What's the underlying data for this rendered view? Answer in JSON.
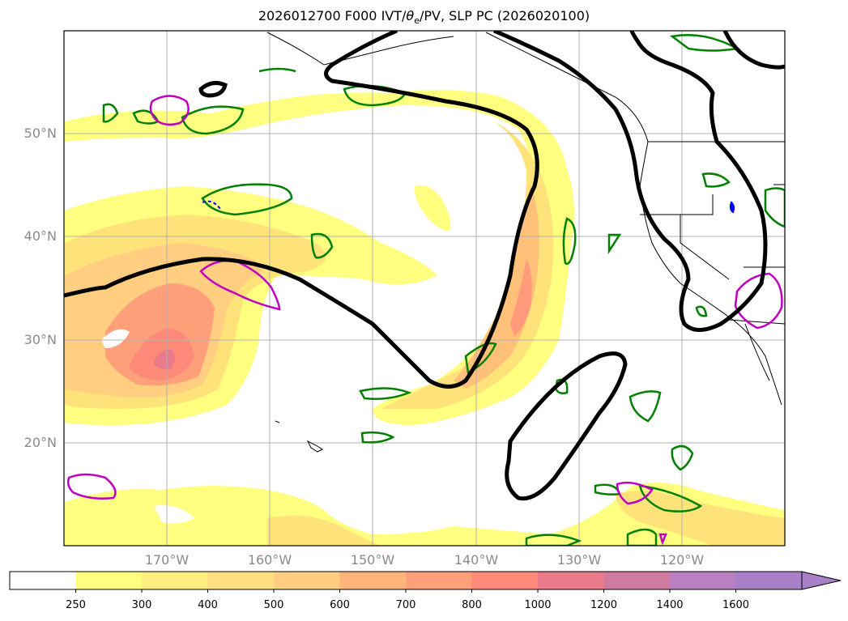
{
  "title": {
    "prefix": "2026012700 F000 IVT/",
    "theta": "θ",
    "theta_sub": "e",
    "suffix": "/PV, SLP PC (2026020100)"
  },
  "map": {
    "projection": "PlateCarree",
    "lon_range": [
      -180,
      -110
    ],
    "lat_range": [
      10,
      60
    ],
    "lat_ticks": [
      "20°N",
      "30°N",
      "40°N",
      "50°N"
    ],
    "lat_values": [
      20,
      30,
      40,
      50
    ],
    "lon_ticks": [
      "170°W",
      "160°W",
      "150°W",
      "140°W",
      "130°W",
      "120°W"
    ],
    "lon_values": [
      -170,
      -160,
      -150,
      -140,
      -130,
      -120
    ],
    "grid": true,
    "colors": {
      "slp_contour": "#000000",
      "green_contour": "#008000",
      "magenta_contour": "#c000c0",
      "blue_contour": "#0000ff",
      "coastline": "#000000"
    }
  },
  "colorbar": {
    "levels": [
      "250",
      "300",
      "400",
      "500",
      "600",
      "700",
      "800",
      "1000",
      "1200",
      "1400",
      "1600"
    ],
    "colors": [
      "#ffffff",
      "#ffff80",
      "#ffef80",
      "#ffdf80",
      "#ffce80",
      "#ffb47a",
      "#ffa07a",
      "#ff8a7a",
      "#e87a8a",
      "#d07aa0",
      "#b880c0",
      "#a880c8"
    ],
    "extend": "max"
  }
}
